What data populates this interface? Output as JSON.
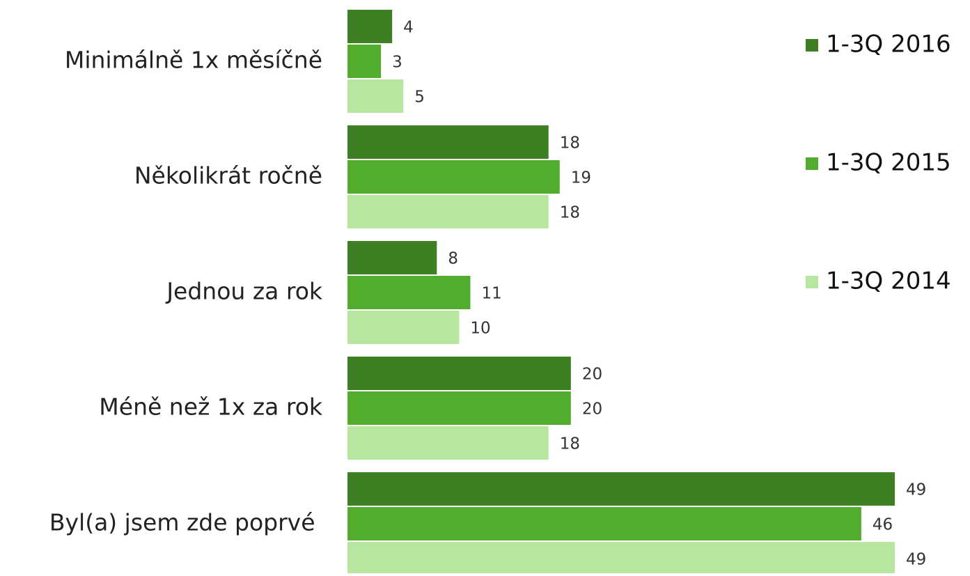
{
  "chart_data": {
    "type": "bar",
    "orientation": "horizontal",
    "categories": [
      "Minimálně 1x měsíčně",
      "Několikrát ročně",
      "Jednou za rok",
      "Méně než 1x za rok",
      "Byl(a) jsem zde poprvé "
    ],
    "series": [
      {
        "name": "1-3Q 2016",
        "color": "#3d7f22",
        "values": [
          4,
          18,
          8,
          20,
          49
        ]
      },
      {
        "name": "1-3Q 2015",
        "color": "#52ad2e",
        "values": [
          3,
          19,
          11,
          20,
          46
        ]
      },
      {
        "name": "1-3Q 2014",
        "color": "#b6e6a0",
        "values": [
          5,
          18,
          10,
          18,
          49
        ]
      }
    ],
    "legend": "right"
  }
}
